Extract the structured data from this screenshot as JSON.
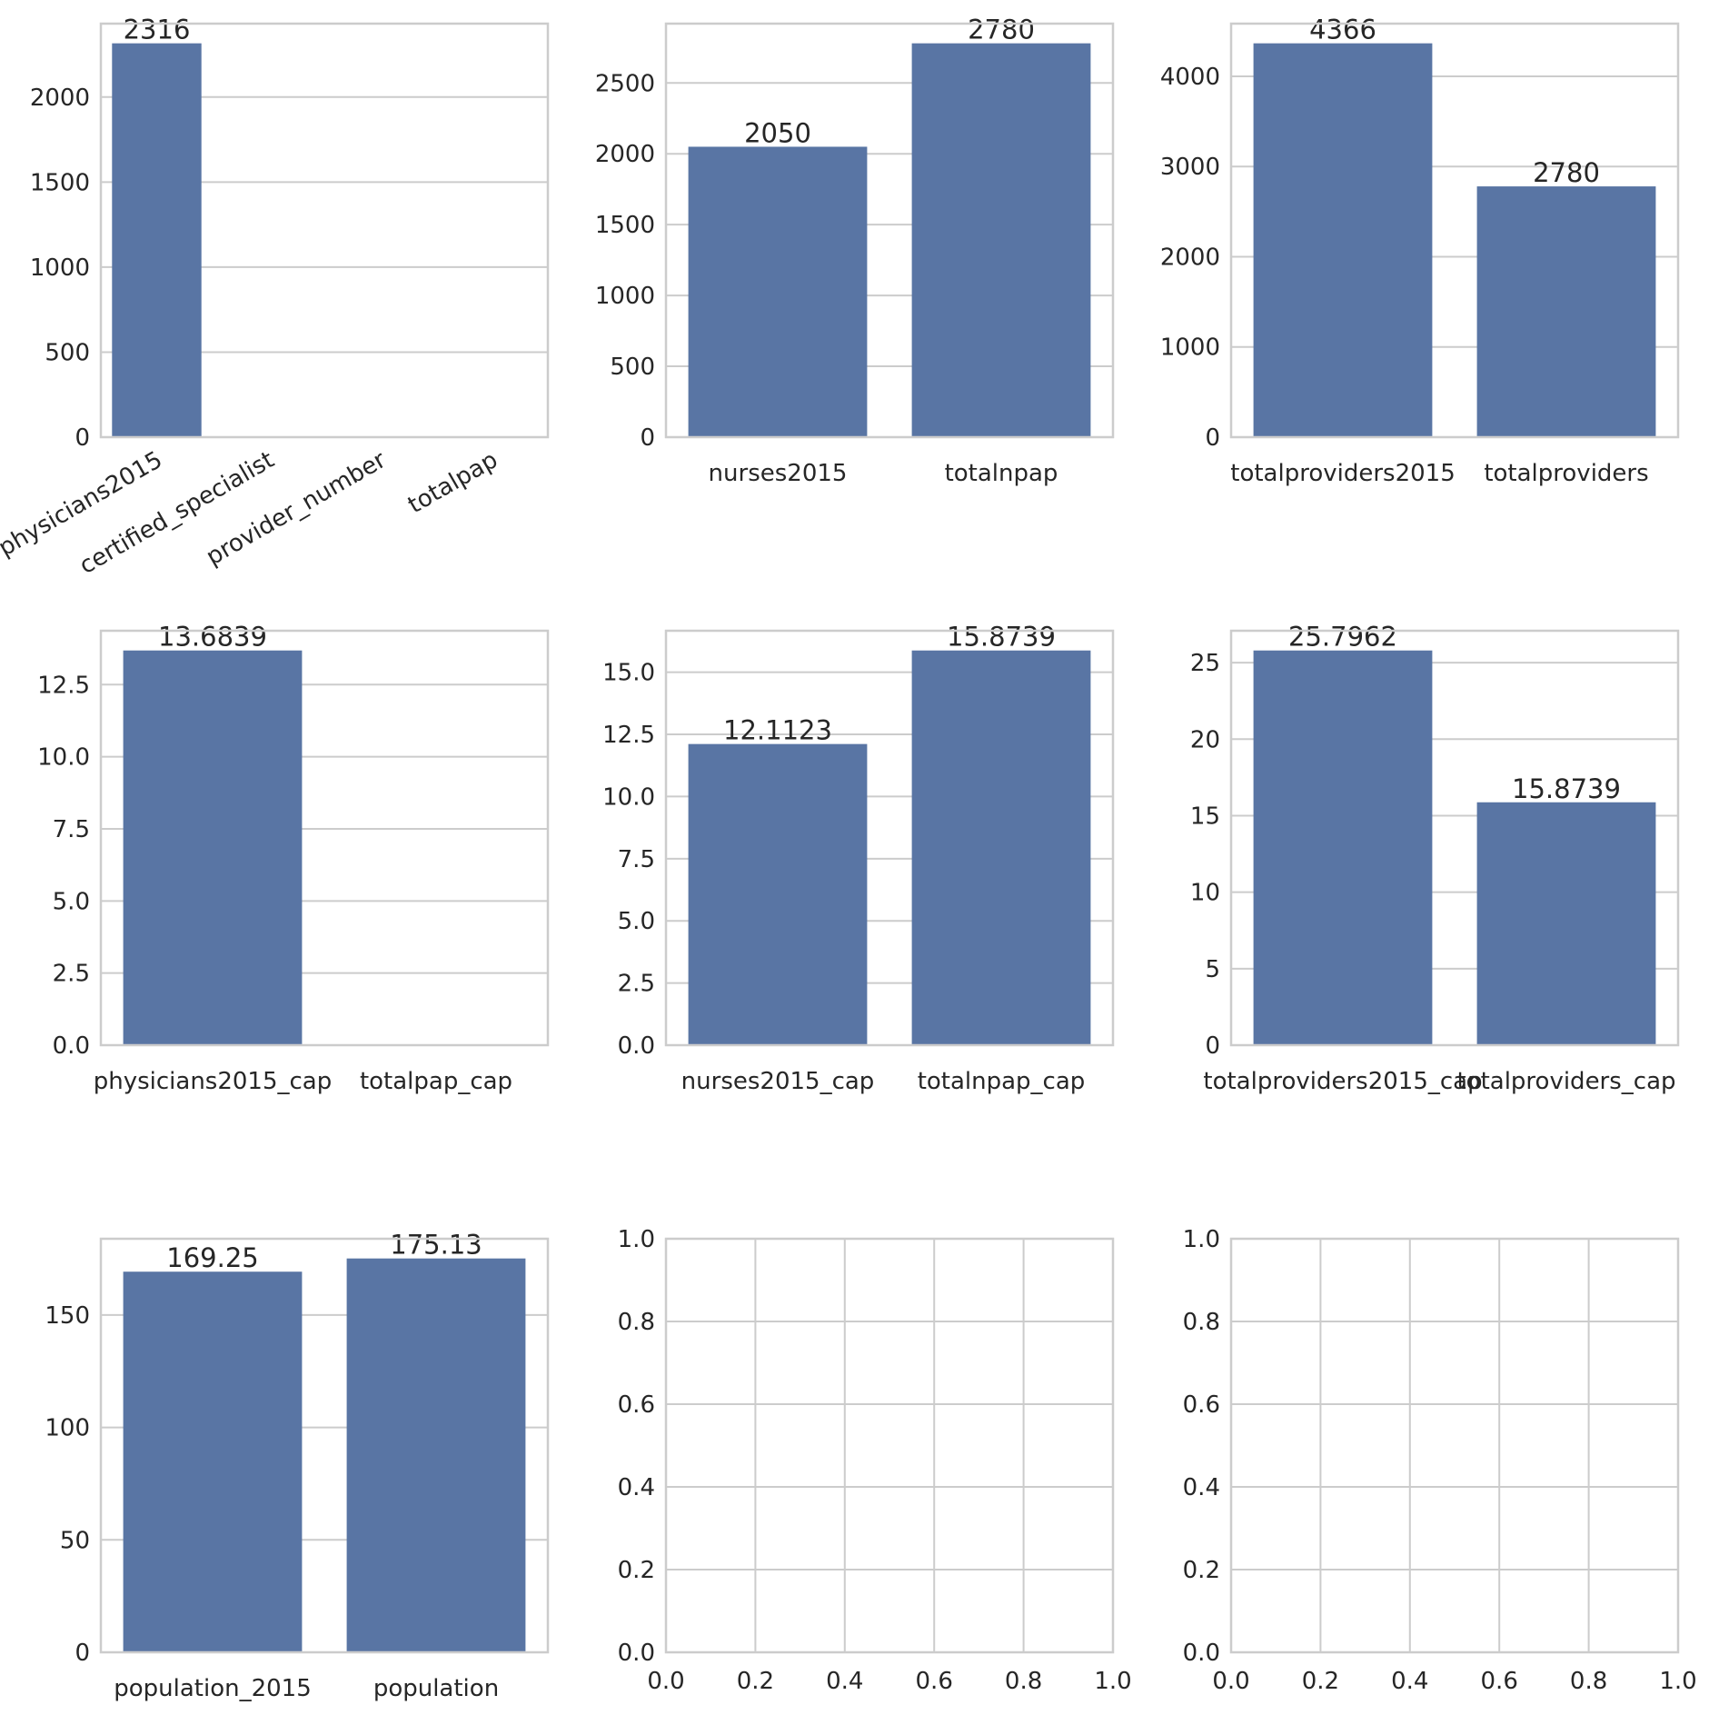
{
  "chart_data": [
    {
      "type": "bar",
      "categories": [
        "physicians2015",
        "certified_specialist",
        "provider_number",
        "totalpap"
      ],
      "values": [
        2316,
        null,
        null,
        null
      ],
      "bar_labels": [
        "2316",
        "",
        "",
        ""
      ],
      "yticks": [
        0,
        500,
        1000,
        1500,
        2000
      ],
      "ylim": [
        0,
        2431.8
      ],
      "xtick_rotation": 30,
      "grid": true,
      "bar_color": "#5975a4"
    },
    {
      "type": "bar",
      "categories": [
        "nurses2015",
        "totalnpap"
      ],
      "values": [
        2050,
        2780
      ],
      "bar_labels": [
        "2050",
        "2780"
      ],
      "yticks": [
        0,
        500,
        1000,
        1500,
        2000,
        2500
      ],
      "ylim": [
        0,
        2919
      ],
      "grid": true,
      "bar_color": "#5975a4"
    },
    {
      "type": "bar",
      "categories": [
        "totalproviders2015",
        "totalproviders"
      ],
      "values": [
        4366,
        2780
      ],
      "bar_labels": [
        "4366",
        "2780"
      ],
      "yticks": [
        0,
        1000,
        2000,
        3000,
        4000
      ],
      "ylim": [
        0,
        4584.3
      ],
      "grid": true,
      "bar_color": "#5975a4"
    },
    {
      "type": "bar",
      "categories": [
        "physicians2015_cap",
        "totalpap_cap"
      ],
      "values": [
        13.6839,
        null
      ],
      "bar_labels": [
        "13.6839",
        ""
      ],
      "yticks": [
        "0.0",
        "2.5",
        "5.0",
        "7.5",
        "10.0",
        "12.5"
      ],
      "ylim": [
        0,
        14.368
      ],
      "grid": true,
      "bar_color": "#5975a4"
    },
    {
      "type": "bar",
      "categories": [
        "nurses2015_cap",
        "totalnpap_cap"
      ],
      "values": [
        12.1123,
        15.8739
      ],
      "bar_labels": [
        "12.1123",
        "15.8739"
      ],
      "yticks": [
        "0.0",
        "2.5",
        "5.0",
        "7.5",
        "10.0",
        "12.5",
        "15.0"
      ],
      "ylim": [
        0,
        16.668
      ],
      "grid": true,
      "bar_color": "#5975a4"
    },
    {
      "type": "bar",
      "categories": [
        "totalproviders2015_cap",
        "totalproviders_cap"
      ],
      "values": [
        25.7962,
        15.8739
      ],
      "bar_labels": [
        "25.7962",
        "15.8739"
      ],
      "yticks": [
        0,
        5,
        10,
        15,
        20,
        25
      ],
      "ylim": [
        0,
        27.086
      ],
      "grid": true,
      "bar_color": "#5975a4"
    },
    {
      "type": "bar",
      "categories": [
        "population_2015",
        "population"
      ],
      "values": [
        169.25,
        175.13
      ],
      "bar_labels": [
        "169.25",
        "175.13"
      ],
      "yticks": [
        0,
        50,
        100,
        150
      ],
      "ylim": [
        0,
        183.89
      ],
      "grid": true,
      "bar_color": "#5975a4"
    },
    {
      "type": "empty",
      "xticks": [
        "0.0",
        "0.2",
        "0.4",
        "0.6",
        "0.8",
        "1.0"
      ],
      "yticks": [
        "0.0",
        "0.2",
        "0.4",
        "0.6",
        "0.8",
        "1.0"
      ],
      "xlim": [
        0,
        1
      ],
      "ylim": [
        0,
        1
      ],
      "grid": true
    },
    {
      "type": "empty",
      "xticks": [
        "0.0",
        "0.2",
        "0.4",
        "0.6",
        "0.8",
        "1.0"
      ],
      "yticks": [
        "0.0",
        "0.2",
        "0.4",
        "0.6",
        "0.8",
        "1.0"
      ],
      "xlim": [
        0,
        1
      ],
      "ylim": [
        0,
        1
      ],
      "grid": true
    }
  ]
}
